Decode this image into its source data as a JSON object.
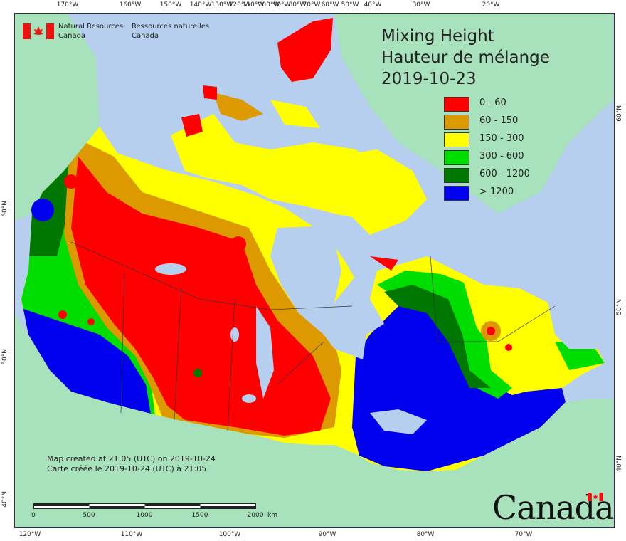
{
  "title": {
    "line1": "Mixing Height",
    "line2": "Hauteur de mélange",
    "date": "2019-10-23"
  },
  "legend": [
    {
      "label": "0 - 60",
      "color": "#ff0000"
    },
    {
      "label": "60 - 150",
      "color": "#dd9900"
    },
    {
      "label": "150 - 300",
      "color": "#ffff00"
    },
    {
      "label": "300 - 600",
      "color": "#00dd00"
    },
    {
      "label": "600 - 1200",
      "color": "#007700"
    },
    {
      "label": "> 1200",
      "color": "#0000ee"
    }
  ],
  "agency": {
    "en_line1": "Natural Resources",
    "en_line2": "Canada",
    "fr_line1": "Ressources naturelles",
    "fr_line2": "Canada"
  },
  "credit": {
    "en": "Map created at 21:05 (UTC) on 2019-10-24",
    "fr": "Carte créée le 2019-10-24 (UTC) à 21:05"
  },
  "scale_bar": {
    "labels": [
      "0",
      "500",
      "1000",
      "1500",
      "2000"
    ],
    "unit": "km"
  },
  "wordmark": "Canada",
  "graticule": {
    "top": [
      "170°W",
      "160°W",
      "150°W",
      "140°W",
      "130°W",
      "120°W",
      "110°W",
      "100°W",
      "90°W",
      "80°W",
      "70°W",
      "60°W",
      "50°W",
      "40°W",
      "30°W",
      "20°W"
    ],
    "bottom": [
      "120°W",
      "110°W",
      "100°W",
      "90°W",
      "80°W",
      "70°W"
    ],
    "left": [
      "60°N",
      "50°N",
      "40°N"
    ],
    "right": [
      "60°N",
      "50°N",
      "40°N"
    ]
  },
  "colors": {
    "ocean": "#b6cfef",
    "land_outside": "#a8e2bd"
  }
}
